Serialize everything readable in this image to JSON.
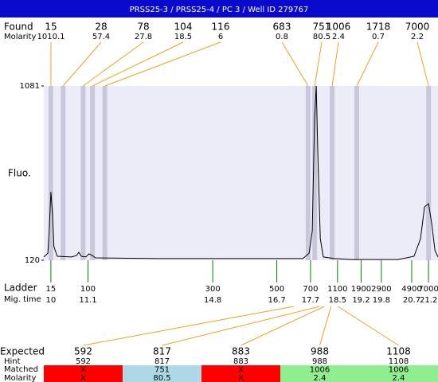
{
  "chart_data": {
    "type": "line",
    "title": "PRSS25-3 / PRSS25-4 / PC 3 / Well ID 279767",
    "ylabel": "Fluo.",
    "ylim": [
      120,
      1081
    ],
    "yticks": [
      120,
      1081
    ],
    "xlim": [
      9.79,
      21.48
    ],
    "color": "#000000",
    "background": "#ececf8",
    "band_color": "#c8c8dc",
    "x": [
      9.79,
      9.91,
      9.95,
      10.0,
      10.05,
      10.09,
      10.19,
      10.61,
      10.76,
      10.83,
      10.9,
      11.04,
      11.13,
      11.23,
      11.32,
      13.21,
      17.47,
      17.66,
      17.75,
      17.82,
      17.87,
      17.92,
      17.99,
      18.08,
      18.41,
      18.88,
      20.3,
      20.77,
      20.96,
      21.08,
      21.2,
      21.29,
      21.39,
      21.48
    ],
    "values": [
      138,
      159,
      282,
      497,
      370,
      195,
      142,
      138,
      146,
      164,
      142,
      138,
      155,
      146,
      133,
      129,
      129,
      159,
      282,
      897,
      1081,
      677,
      238,
      138,
      129,
      124,
      124,
      142,
      238,
      414,
      432,
      326,
      173,
      138
    ]
  },
  "found": {
    "label": "Found",
    "molarity_label": "Molarity",
    "line_color": "#f0a020",
    "peaks": [
      {
        "size": 15,
        "molarity": 1010.1
      },
      {
        "size": 28,
        "molarity": 57.4
      },
      {
        "size": 78,
        "molarity": 27.8
      },
      {
        "size": 104,
        "molarity": 18.5
      },
      {
        "size": 116,
        "molarity": 6
      },
      {
        "size": 683,
        "molarity": 0.8
      },
      {
        "size": 751,
        "molarity": 80.5
      },
      {
        "size": 1006,
        "molarity": 2.4
      },
      {
        "size": 1718,
        "molarity": 0.7
      },
      {
        "size": 7000,
        "molarity": 2.2
      }
    ]
  },
  "ladder": {
    "label": "Ladder",
    "time_label": "Mig. time",
    "color": "#008000",
    "peaks": [
      {
        "size": 15,
        "time": 10
      },
      {
        "size": 100,
        "time": 11.1
      },
      {
        "size": 300,
        "time": 14.8
      },
      {
        "size": 500,
        "time": 16.7
      },
      {
        "size": 700,
        "time": 17.7
      },
      {
        "size": 1100,
        "time": 18.5
      },
      {
        "size": 1900,
        "time": 19.2
      },
      {
        "size": 2900,
        "time": 19.8
      },
      {
        "size": 4900,
        "time": 20.7
      },
      {
        "size": 7000,
        "time": 21.2
      }
    ]
  },
  "expected": {
    "label": "Expected",
    "hint_label": "Hint",
    "matched_label": "Matched",
    "molarity_label": "Molarity",
    "line_color": "#f0a020",
    "rows": [
      {
        "expected": 592,
        "hint": 592,
        "matched": "X",
        "molarity": "X",
        "color": "#ff0000"
      },
      {
        "expected": 817,
        "hint": 817,
        "matched": 751,
        "molarity": 80.5,
        "color": "#add8e6"
      },
      {
        "expected": 883,
        "hint": 883,
        "matched": "X",
        "molarity": "X",
        "color": "#ff0000"
      },
      {
        "expected": 988,
        "hint": 988,
        "matched": 1006,
        "molarity": 2.4,
        "color": "#90ee90"
      },
      {
        "expected": 1108,
        "hint": 1108,
        "matched": 1006,
        "molarity": 2.4,
        "color": "#90ee90"
      }
    ]
  }
}
